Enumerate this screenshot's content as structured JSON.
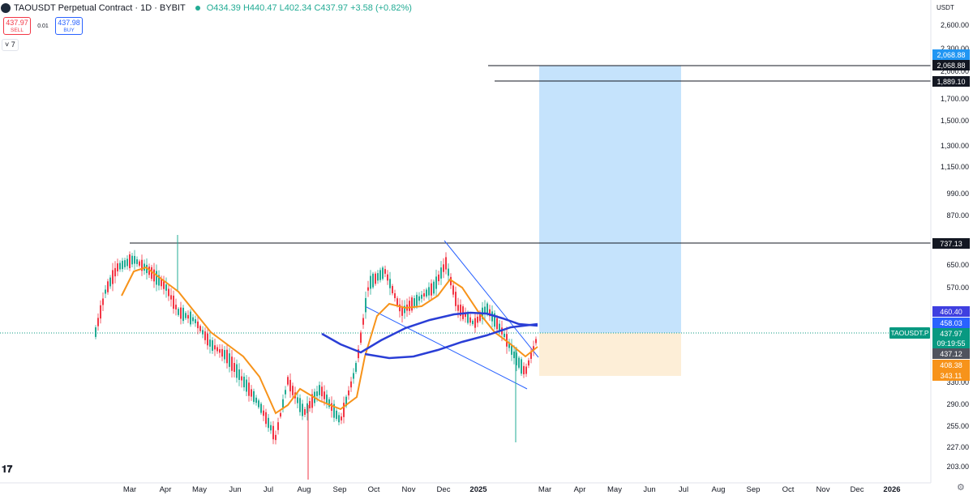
{
  "header": {
    "symbol_title": "TAOUSDT Perpetual Contract · 1D · BYBIT",
    "ohlc": "O434.39 H440.47 L402.34 C437.97 +3.58 (+0.82%)"
  },
  "trade": {
    "sell_price": "437.97",
    "sell_label": "SELL",
    "spread": "0.01",
    "buy_price": "437.98",
    "buy_label": "BUY"
  },
  "indicator_toggle": "˅ 7",
  "currency": "USDT",
  "price_axis": {
    "ticks": [
      "2,600.00",
      "2,300.00",
      "2,068.88",
      "2,000.00",
      "1,889.10",
      "1,700.00",
      "1,500.00",
      "1,300.00",
      "1,150.00",
      "990.00",
      "870.00",
      "650.00",
      "570.00",
      "330.00",
      "290.00",
      "255.00",
      "227.00",
      "203.00"
    ],
    "labels": [
      {
        "value": "2,068.88",
        "color": "#2196f3"
      },
      {
        "value": "2,068.88",
        "color": "#131722"
      },
      {
        "value": "1,889.10",
        "color": "#131722"
      },
      {
        "value": "737.13",
        "color": "#131722"
      },
      {
        "value": "460.40",
        "color": "#3f3fe0"
      },
      {
        "value": "458.03",
        "color": "#2962ff"
      },
      {
        "value": "437.97",
        "color": "#089981"
      },
      {
        "value": "09:19:55",
        "color": "#089981"
      },
      {
        "value": "437.12",
        "color": "#50535e"
      },
      {
        "value": "408.38",
        "color": "#f7931a"
      },
      {
        "value": "343.11",
        "color": "#f7931a"
      }
    ],
    "symbol_tag": "TAOUSDT.P"
  },
  "time_axis": [
    "Mar",
    "Apr",
    "May",
    "Jun",
    "Jul",
    "Aug",
    "Sep",
    "Oct",
    "Nov",
    "Dec",
    "2025",
    "Mar",
    "Apr",
    "May",
    "Jun",
    "Jul",
    "Aug",
    "Sep",
    "Oct",
    "Nov",
    "Dec",
    "2026"
  ],
  "colors": {
    "up": "#22ab94",
    "down": "#f23645",
    "ma_orange": "#f7931a",
    "ma_blue": "#2a3ed6",
    "profit": "#bbdefb",
    "loss": "#fdeed7"
  }
}
